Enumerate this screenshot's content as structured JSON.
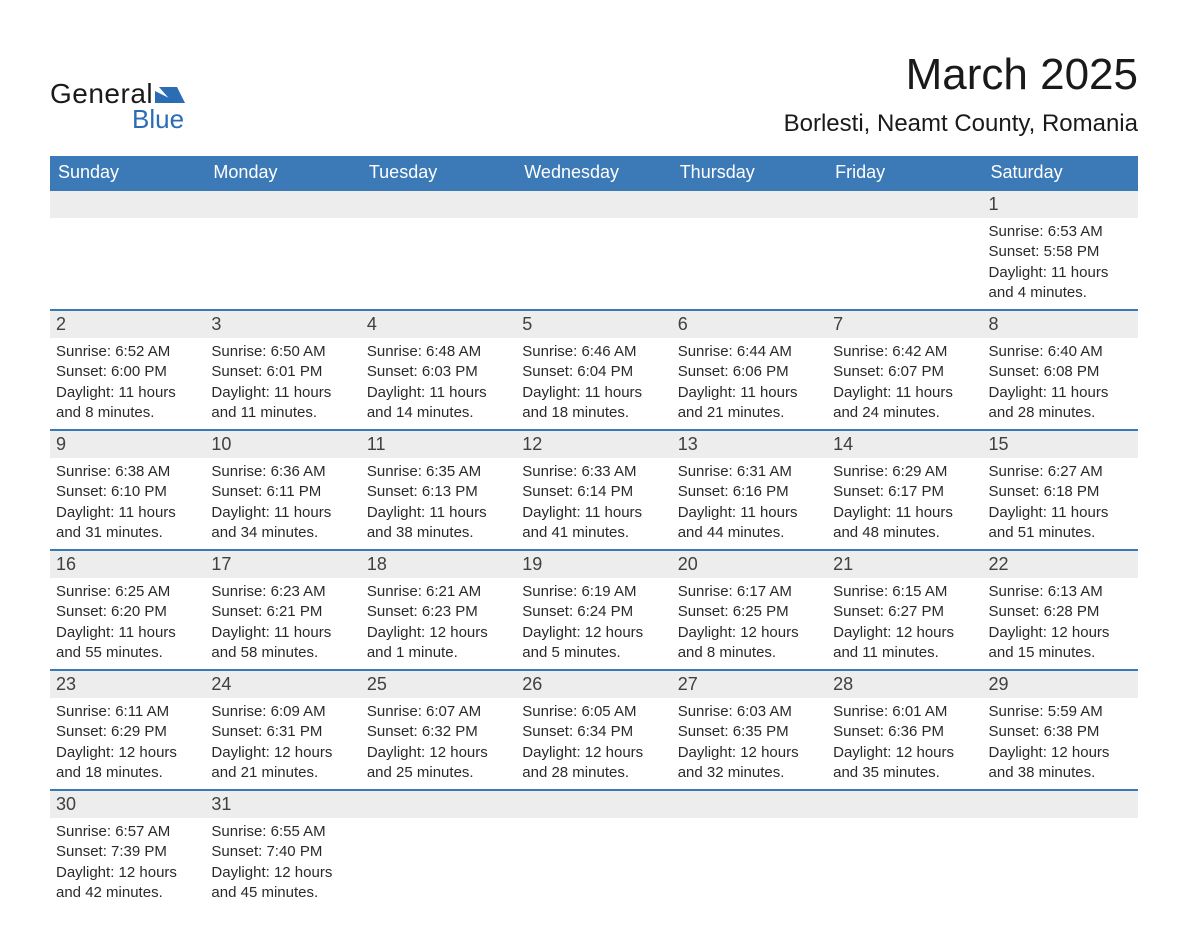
{
  "brand": {
    "word1": "General",
    "word2": "Blue",
    "shape_color": "#2a6db5",
    "text1_color": "#1a1a1a"
  },
  "title": "March 2025",
  "location": "Borlesti, Neamt County, Romania",
  "header_bg": "#3b79b7",
  "header_fg": "#ffffff",
  "daynum_bg": "#ededed",
  "border_color": "#3b79b7",
  "text_color": "#2a2a2a",
  "days_of_week": [
    "Sunday",
    "Monday",
    "Tuesday",
    "Wednesday",
    "Thursday",
    "Friday",
    "Saturday"
  ],
  "weeks": [
    [
      null,
      null,
      null,
      null,
      null,
      null,
      {
        "n": "1",
        "sr": "6:53 AM",
        "ss": "5:58 PM",
        "dl": "11 hours and 4 minutes."
      }
    ],
    [
      {
        "n": "2",
        "sr": "6:52 AM",
        "ss": "6:00 PM",
        "dl": "11 hours and 8 minutes."
      },
      {
        "n": "3",
        "sr": "6:50 AM",
        "ss": "6:01 PM",
        "dl": "11 hours and 11 minutes."
      },
      {
        "n": "4",
        "sr": "6:48 AM",
        "ss": "6:03 PM",
        "dl": "11 hours and 14 minutes."
      },
      {
        "n": "5",
        "sr": "6:46 AM",
        "ss": "6:04 PM",
        "dl": "11 hours and 18 minutes."
      },
      {
        "n": "6",
        "sr": "6:44 AM",
        "ss": "6:06 PM",
        "dl": "11 hours and 21 minutes."
      },
      {
        "n": "7",
        "sr": "6:42 AM",
        "ss": "6:07 PM",
        "dl": "11 hours and 24 minutes."
      },
      {
        "n": "8",
        "sr": "6:40 AM",
        "ss": "6:08 PM",
        "dl": "11 hours and 28 minutes."
      }
    ],
    [
      {
        "n": "9",
        "sr": "6:38 AM",
        "ss": "6:10 PM",
        "dl": "11 hours and 31 minutes."
      },
      {
        "n": "10",
        "sr": "6:36 AM",
        "ss": "6:11 PM",
        "dl": "11 hours and 34 minutes."
      },
      {
        "n": "11",
        "sr": "6:35 AM",
        "ss": "6:13 PM",
        "dl": "11 hours and 38 minutes."
      },
      {
        "n": "12",
        "sr": "6:33 AM",
        "ss": "6:14 PM",
        "dl": "11 hours and 41 minutes."
      },
      {
        "n": "13",
        "sr": "6:31 AM",
        "ss": "6:16 PM",
        "dl": "11 hours and 44 minutes."
      },
      {
        "n": "14",
        "sr": "6:29 AM",
        "ss": "6:17 PM",
        "dl": "11 hours and 48 minutes."
      },
      {
        "n": "15",
        "sr": "6:27 AM",
        "ss": "6:18 PM",
        "dl": "11 hours and 51 minutes."
      }
    ],
    [
      {
        "n": "16",
        "sr": "6:25 AM",
        "ss": "6:20 PM",
        "dl": "11 hours and 55 minutes."
      },
      {
        "n": "17",
        "sr": "6:23 AM",
        "ss": "6:21 PM",
        "dl": "11 hours and 58 minutes."
      },
      {
        "n": "18",
        "sr": "6:21 AM",
        "ss": "6:23 PM",
        "dl": "12 hours and 1 minute."
      },
      {
        "n": "19",
        "sr": "6:19 AM",
        "ss": "6:24 PM",
        "dl": "12 hours and 5 minutes."
      },
      {
        "n": "20",
        "sr": "6:17 AM",
        "ss": "6:25 PM",
        "dl": "12 hours and 8 minutes."
      },
      {
        "n": "21",
        "sr": "6:15 AM",
        "ss": "6:27 PM",
        "dl": "12 hours and 11 minutes."
      },
      {
        "n": "22",
        "sr": "6:13 AM",
        "ss": "6:28 PM",
        "dl": "12 hours and 15 minutes."
      }
    ],
    [
      {
        "n": "23",
        "sr": "6:11 AM",
        "ss": "6:29 PM",
        "dl": "12 hours and 18 minutes."
      },
      {
        "n": "24",
        "sr": "6:09 AM",
        "ss": "6:31 PM",
        "dl": "12 hours and 21 minutes."
      },
      {
        "n": "25",
        "sr": "6:07 AM",
        "ss": "6:32 PM",
        "dl": "12 hours and 25 minutes."
      },
      {
        "n": "26",
        "sr": "6:05 AM",
        "ss": "6:34 PM",
        "dl": "12 hours and 28 minutes."
      },
      {
        "n": "27",
        "sr": "6:03 AM",
        "ss": "6:35 PM",
        "dl": "12 hours and 32 minutes."
      },
      {
        "n": "28",
        "sr": "6:01 AM",
        "ss": "6:36 PM",
        "dl": "12 hours and 35 minutes."
      },
      {
        "n": "29",
        "sr": "5:59 AM",
        "ss": "6:38 PM",
        "dl": "12 hours and 38 minutes."
      }
    ],
    [
      {
        "n": "30",
        "sr": "6:57 AM",
        "ss": "7:39 PM",
        "dl": "12 hours and 42 minutes."
      },
      {
        "n": "31",
        "sr": "6:55 AM",
        "ss": "7:40 PM",
        "dl": "12 hours and 45 minutes."
      },
      null,
      null,
      null,
      null,
      null
    ]
  ],
  "labels": {
    "sunrise": "Sunrise: ",
    "sunset": "Sunset: ",
    "daylight": "Daylight: "
  }
}
